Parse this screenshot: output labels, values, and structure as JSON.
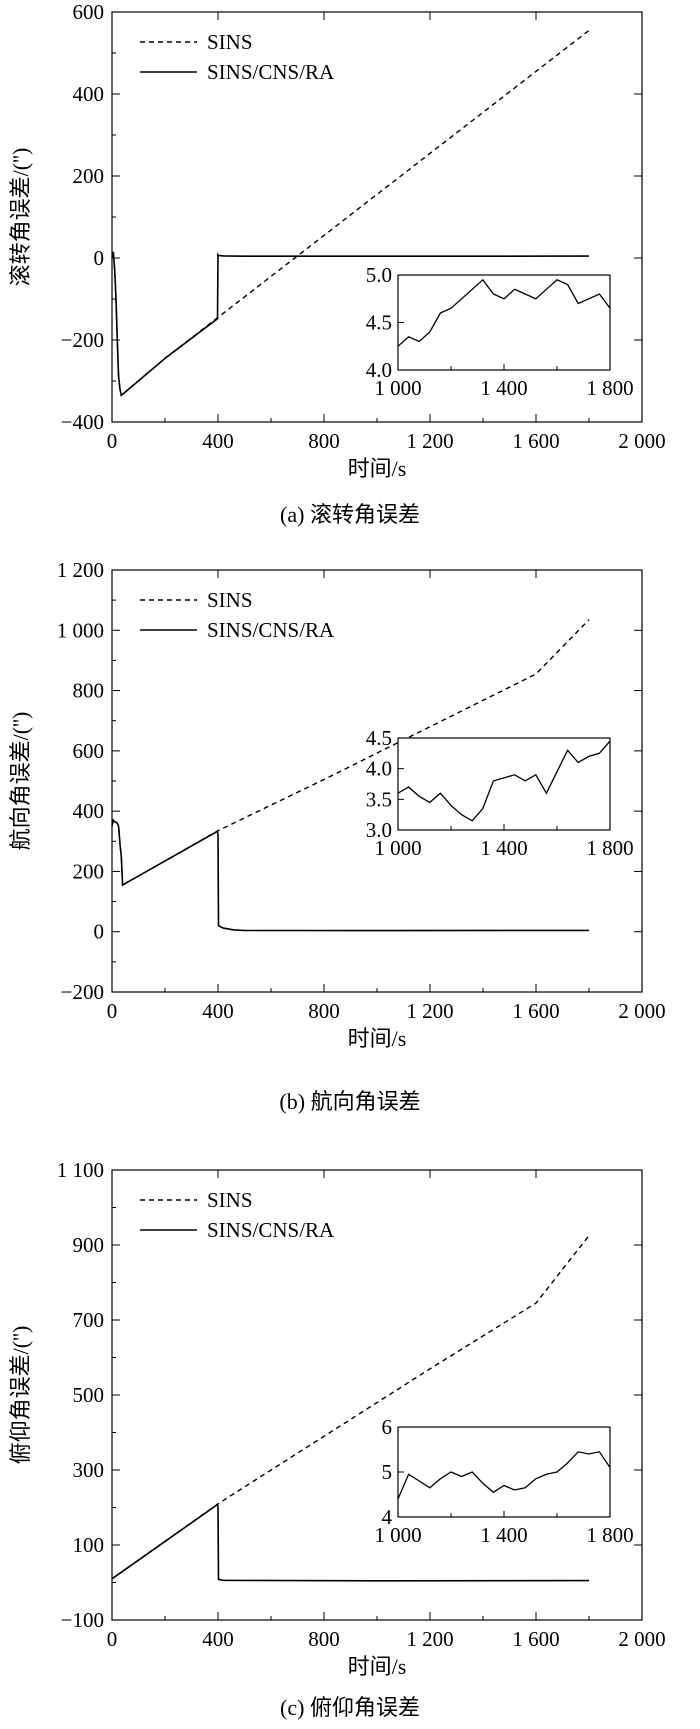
{
  "chart_data": [
    {
      "type": "line",
      "caption": "(a) 滚转角误差",
      "xlabel": "时间/s",
      "ylabel": "滚转角误差/('')",
      "xlim": [
        0,
        2000
      ],
      "ylim": [
        -400,
        600
      ],
      "xticks": [
        0,
        400,
        800,
        1200,
        1600,
        2000
      ],
      "xtick_labels": [
        "0",
        "400",
        "800",
        "1 200",
        "1 600",
        "2 000"
      ],
      "yticks": [
        -400,
        -200,
        0,
        200,
        400,
        600
      ],
      "ytick_labels": [
        "−400",
        "−200",
        "0",
        "200",
        "400",
        "600"
      ],
      "legend": "top-left",
      "series": [
        {
          "name": "SINS",
          "style": "dashed",
          "x": [
            0,
            5,
            10,
            15,
            20,
            25,
            30,
            35,
            200,
            400,
            700,
            1000,
            1400,
            1800
          ],
          "y": [
            0,
            15,
            -30,
            -100,
            -200,
            -290,
            -320,
            -335,
            -245,
            -145,
            5,
            155,
            355,
            555
          ]
        },
        {
          "name": "SINS/CNS/RA",
          "style": "solid",
          "x": [
            0,
            5,
            10,
            15,
            20,
            25,
            30,
            35,
            200,
            398,
            400,
            402,
            420,
            500,
            1000,
            1800
          ],
          "y": [
            0,
            15,
            -30,
            -100,
            -200,
            -290,
            -320,
            -335,
            -245,
            -148,
            8,
            6,
            5,
            4.5,
            4.5,
            4.6
          ]
        }
      ],
      "inset": {
        "xlim": [
          1000,
          1800
        ],
        "ylim": [
          4.0,
          5.0
        ],
        "xticks": [
          1000,
          1400,
          1800
        ],
        "xtick_labels": [
          "1 000",
          "1 400",
          "1 800"
        ],
        "yticks": [
          4.0,
          4.5,
          5.0
        ],
        "ytick_labels": [
          "4.0",
          "4.5",
          "5.0"
        ],
        "x": [
          1000,
          1040,
          1080,
          1120,
          1160,
          1200,
          1240,
          1280,
          1320,
          1360,
          1400,
          1440,
          1480,
          1520,
          1560,
          1600,
          1640,
          1680,
          1720,
          1760,
          1800
        ],
        "y": [
          4.25,
          4.35,
          4.3,
          4.4,
          4.6,
          4.65,
          4.75,
          4.85,
          4.95,
          4.8,
          4.75,
          4.85,
          4.8,
          4.75,
          4.85,
          4.95,
          4.9,
          4.7,
          4.75,
          4.8,
          4.65
        ]
      }
    },
    {
      "type": "line",
      "caption": "(b) 航向角误差",
      "xlabel": "时间/s",
      "ylabel": "航向角误差/('')",
      "xlim": [
        0,
        2000
      ],
      "ylim": [
        -200,
        1200
      ],
      "xticks": [
        0,
        400,
        800,
        1200,
        1600,
        2000
      ],
      "xtick_labels": [
        "0",
        "400",
        "800",
        "1 200",
        "1 600",
        "2 000"
      ],
      "yticks": [
        -200,
        0,
        200,
        400,
        600,
        800,
        1000,
        1200
      ],
      "ytick_labels": [
        "−200",
        "0",
        "200",
        "400",
        "600",
        "800",
        "1 000",
        "1 200"
      ],
      "legend": "top-left",
      "series": [
        {
          "name": "SINS",
          "style": "dashed",
          "x": [
            0,
            5,
            10,
            20,
            25,
            30,
            35,
            40,
            400,
            800,
            1200,
            1600,
            1800
          ],
          "y": [
            350,
            370,
            365,
            360,
            350,
            290,
            250,
            155,
            335,
            505,
            680,
            855,
            1035
          ]
        },
        {
          "name": "SINS/CNS/RA",
          "style": "solid",
          "x": [
            0,
            5,
            10,
            20,
            25,
            30,
            35,
            40,
            398,
            400,
            402,
            420,
            460,
            500,
            1000,
            1800
          ],
          "y": [
            350,
            370,
            365,
            360,
            350,
            290,
            250,
            155,
            333,
            320,
            20,
            12,
            6,
            4,
            3.7,
            4.3
          ]
        }
      ],
      "inset": {
        "xlim": [
          1000,
          1800
        ],
        "ylim": [
          3.0,
          4.5
        ],
        "xticks": [
          1000,
          1400,
          1800
        ],
        "xtick_labels": [
          "1 000",
          "1 400",
          "1 800"
        ],
        "yticks": [
          3.0,
          3.5,
          4.0,
          4.5
        ],
        "ytick_labels": [
          "3.0",
          "3.5",
          "4.0",
          "4.5"
        ],
        "x": [
          1000,
          1040,
          1080,
          1120,
          1160,
          1200,
          1240,
          1280,
          1320,
          1360,
          1400,
          1440,
          1480,
          1520,
          1560,
          1600,
          1640,
          1680,
          1720,
          1760,
          1800
        ],
        "y": [
          3.6,
          3.7,
          3.55,
          3.45,
          3.6,
          3.4,
          3.25,
          3.15,
          3.35,
          3.8,
          3.85,
          3.9,
          3.8,
          3.9,
          3.6,
          3.95,
          4.3,
          4.1,
          4.2,
          4.25,
          4.45
        ]
      }
    },
    {
      "type": "line",
      "caption": "(c) 俯仰角误差",
      "xlabel": "时间/s",
      "ylabel": "俯仰角误差/('')",
      "xlim": [
        0,
        2000
      ],
      "ylim": [
        -100,
        1100
      ],
      "xticks": [
        0,
        400,
        800,
        1200,
        1600,
        2000
      ],
      "xtick_labels": [
        "0",
        "400",
        "800",
        "1 200",
        "1 600",
        "2 000"
      ],
      "yticks": [
        -100,
        100,
        300,
        500,
        700,
        900,
        1100
      ],
      "ytick_labels": [
        "−100",
        "100",
        "300",
        "500",
        "700",
        "900",
        "1 100"
      ],
      "legend": "top-left",
      "series": [
        {
          "name": "SINS",
          "style": "dashed",
          "x": [
            0,
            400,
            800,
            1200,
            1600,
            1800
          ],
          "y": [
            10,
            210,
            390,
            570,
            745,
            925
          ]
        },
        {
          "name": "SINS/CNS/RA",
          "style": "solid",
          "x": [
            0,
            398,
            400,
            402,
            420,
            500,
            1000,
            1800
          ],
          "y": [
            10,
            208,
            200,
            8,
            6,
            5.5,
            4.5,
            5.2
          ]
        }
      ],
      "inset": {
        "xlim": [
          1000,
          1800
        ],
        "ylim": [
          4,
          6
        ],
        "xticks": [
          1000,
          1400,
          1800
        ],
        "xtick_labels": [
          "1 000",
          "1 400",
          "1 800"
        ],
        "yticks": [
          4,
          5,
          6
        ],
        "ytick_labels": [
          "4",
          "5",
          "6"
        ],
        "x": [
          1000,
          1040,
          1080,
          1120,
          1160,
          1200,
          1240,
          1280,
          1320,
          1360,
          1400,
          1440,
          1480,
          1520,
          1560,
          1600,
          1640,
          1680,
          1720,
          1760,
          1800
        ],
        "y": [
          4.4,
          4.95,
          4.8,
          4.65,
          4.85,
          5.0,
          4.9,
          5.0,
          4.75,
          4.55,
          4.7,
          4.6,
          4.65,
          4.85,
          4.95,
          5.0,
          5.2,
          5.45,
          5.4,
          5.45,
          5.1
        ]
      }
    }
  ]
}
